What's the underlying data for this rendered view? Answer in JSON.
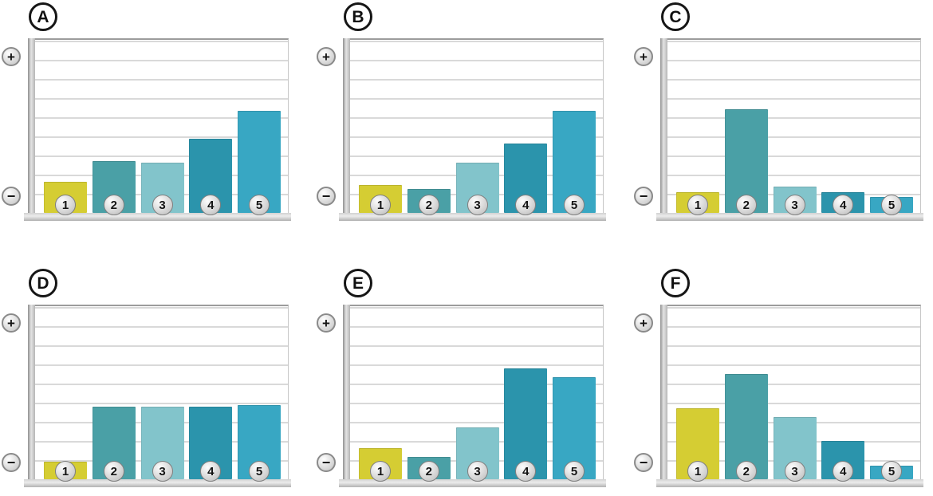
{
  "axis_labels": {
    "plus": "+",
    "minus": "−"
  },
  "bar_colors": [
    "#d5cd33",
    "#4aa0a6",
    "#82c4cb",
    "#2b94ac",
    "#38a7c3"
  ],
  "grid_color": "#d9d9d9",
  "axis_metal_color": "#b5b5b5",
  "values_are": "percent of y-axis height; axis shows only qualitative +/− endpoints, no numeric ticks",
  "chart_data": [
    {
      "panel": "A",
      "type": "bar",
      "categories": [
        "1",
        "2",
        "3",
        "4",
        "5"
      ],
      "values": [
        18,
        30,
        29,
        43,
        59
      ],
      "y_axis_top_label": "+",
      "y_axis_bottom_label": "−",
      "ylim": [
        0,
        100
      ],
      "grid": true,
      "legend": false
    },
    {
      "panel": "B",
      "type": "bar",
      "categories": [
        "1",
        "2",
        "3",
        "4",
        "5"
      ],
      "values": [
        16,
        14,
        29,
        40,
        59
      ],
      "y_axis_top_label": "+",
      "y_axis_bottom_label": "−",
      "ylim": [
        0,
        100
      ],
      "grid": true,
      "legend": false
    },
    {
      "panel": "C",
      "type": "bar",
      "categories": [
        "1",
        "2",
        "3",
        "4",
        "5"
      ],
      "values": [
        12,
        60,
        15,
        12,
        9
      ],
      "y_axis_top_label": "+",
      "y_axis_bottom_label": "−",
      "ylim": [
        0,
        100
      ],
      "grid": true,
      "legend": false
    },
    {
      "panel": "D",
      "type": "bar",
      "categories": [
        "1",
        "2",
        "3",
        "4",
        "5"
      ],
      "values": [
        10,
        42,
        42,
        42,
        43
      ],
      "y_axis_top_label": "+",
      "y_axis_bottom_label": "−",
      "ylim": [
        0,
        100
      ],
      "grid": true,
      "legend": false
    },
    {
      "panel": "E",
      "type": "bar",
      "categories": [
        "1",
        "2",
        "3",
        "4",
        "5"
      ],
      "values": [
        18,
        13,
        30,
        64,
        59
      ],
      "y_axis_top_label": "+",
      "y_axis_bottom_label": "−",
      "ylim": [
        0,
        100
      ],
      "grid": true,
      "legend": false
    },
    {
      "panel": "F",
      "type": "bar",
      "categories": [
        "1",
        "2",
        "3",
        "4",
        "5"
      ],
      "values": [
        41,
        61,
        36,
        22,
        8
      ],
      "y_axis_top_label": "+",
      "y_axis_bottom_label": "−",
      "ylim": [
        0,
        100
      ],
      "grid": true,
      "legend": false
    }
  ]
}
